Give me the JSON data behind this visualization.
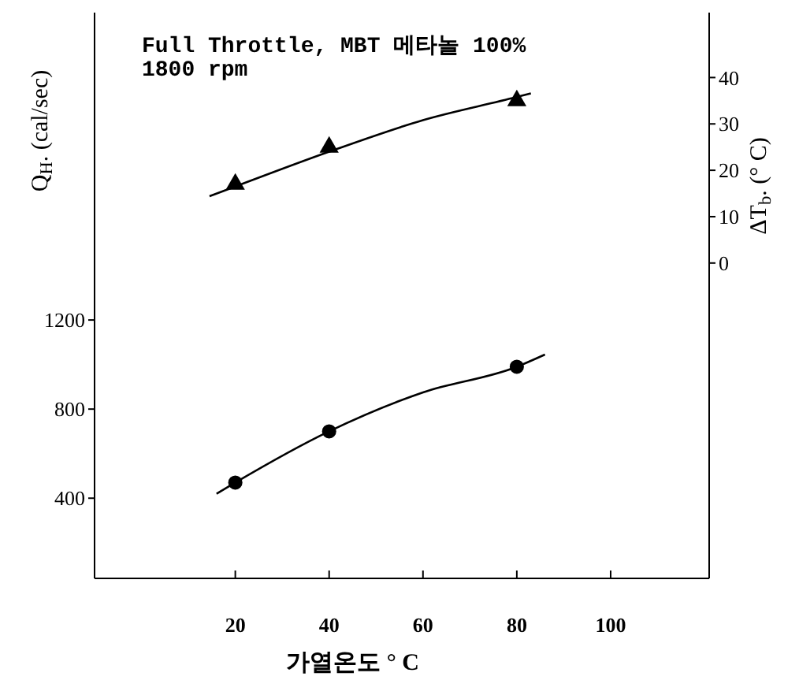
{
  "chart_data": {
    "type": "scatter",
    "xlabel": "가열온도   ° C",
    "ylabel": "Q$_{H}$. (cal/sec)",
    "y2label": "ΔT$_{b}$. (° C)",
    "annotations": [
      "Full Throttle, MBT 메타놀 100%",
      "1800 rpm"
    ],
    "xlim": [
      -10,
      121
    ],
    "xticks": [
      20,
      40,
      60,
      80,
      100
    ],
    "ylim": [
      40,
      2580
    ],
    "yticks": [
      400,
      800,
      1200
    ],
    "y2lim": [
      -68,
      54
    ],
    "y2ticks": [
      0,
      10,
      20,
      30,
      40
    ],
    "grid": false,
    "series": [
      {
        "marker": "circle",
        "color": "#000000",
        "x": [
          20,
          40,
          80
        ],
        "values": [
          470,
          700,
          990
        ]
      },
      {
        "type": "line",
        "marker": "none",
        "color": "#000000",
        "x": [
          16,
          20,
          40,
          60,
          80,
          86
        ],
        "values": [
          420,
          470,
          700,
          875,
          990,
          1045
        ]
      },
      {
        "marker": "triangle",
        "axis": "y2",
        "color": "#000000",
        "x": [
          20,
          40,
          80
        ],
        "values": [
          17,
          25,
          35
        ]
      },
      {
        "type": "line",
        "marker": "none",
        "axis": "y2",
        "color": "#000000",
        "x": [
          14.5,
          20,
          40,
          60,
          80,
          83
        ],
        "values": [
          14.4,
          16.5,
          24,
          30.8,
          35.8,
          36.6
        ]
      }
    ]
  }
}
